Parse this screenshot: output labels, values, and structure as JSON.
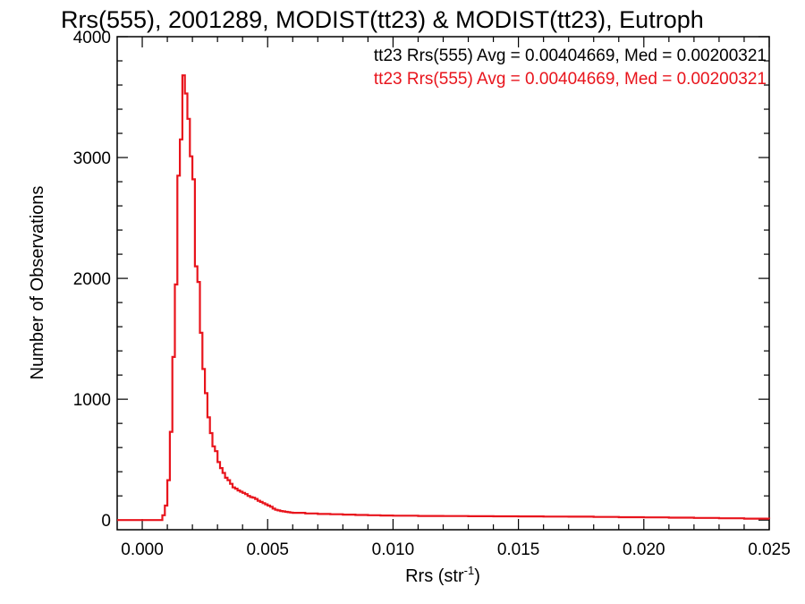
{
  "chart_data": {
    "type": "histogram",
    "title": "Rrs(555), 2001289, MODIST(tt23) & MODIST(tt23), Eutroph",
    "xlabel_main": "Rrs (str",
    "xlabel_sup": "-1",
    "xlabel_end": ")",
    "ylabel": "Number of Observations",
    "xlim": [
      -0.001,
      0.025
    ],
    "ylim": [
      -80,
      4000
    ],
    "x_ticks": [
      {
        "value": 0.0,
        "label": "0.000"
      },
      {
        "value": 0.005,
        "label": "0.005"
      },
      {
        "value": 0.01,
        "label": "0.010"
      },
      {
        "value": 0.015,
        "label": "0.015"
      },
      {
        "value": 0.02,
        "label": "0.020"
      },
      {
        "value": 0.025,
        "label": "0.025"
      }
    ],
    "y_ticks": [
      {
        "value": 0,
        "label": "0"
      },
      {
        "value": 1000,
        "label": "1000"
      },
      {
        "value": 2000,
        "label": "2000"
      },
      {
        "value": 3000,
        "label": "3000"
      },
      {
        "value": 4000,
        "label": "4000"
      }
    ],
    "legend": [
      {
        "text": "tt23 Rrs(555) Avg = 0.00404669, Med = 0.00200321",
        "color": "#000000"
      },
      {
        "text": "tt23 Rrs(555) Avg = 0.00404669, Med = 0.00200321",
        "color": "#e8141c"
      }
    ],
    "legend_position": "top-right",
    "series": [
      {
        "color": "#e8141c",
        "points": [
          [
            -0.001,
            0
          ],
          [
            0.0007,
            0
          ],
          [
            0.0008,
            40
          ],
          [
            0.0009,
            120
          ],
          [
            0.001,
            330
          ],
          [
            0.0011,
            730
          ],
          [
            0.0012,
            1350
          ],
          [
            0.0013,
            1950
          ],
          [
            0.0014,
            2850
          ],
          [
            0.0015,
            3150
          ],
          [
            0.0016,
            3680
          ],
          [
            0.0017,
            3530
          ],
          [
            0.0018,
            3320
          ],
          [
            0.0019,
            3010
          ],
          [
            0.002,
            2820
          ],
          [
            0.0021,
            2100
          ],
          [
            0.0022,
            1970
          ],
          [
            0.0023,
            1550
          ],
          [
            0.0024,
            1250
          ],
          [
            0.0025,
            1050
          ],
          [
            0.0026,
            850
          ],
          [
            0.0027,
            720
          ],
          [
            0.0028,
            610
          ],
          [
            0.0029,
            570
          ],
          [
            0.003,
            480
          ],
          [
            0.0031,
            430
          ],
          [
            0.0032,
            390
          ],
          [
            0.0033,
            350
          ],
          [
            0.0034,
            330
          ],
          [
            0.0035,
            300
          ],
          [
            0.0036,
            270
          ],
          [
            0.0037,
            260
          ],
          [
            0.0038,
            245
          ],
          [
            0.0039,
            235
          ],
          [
            0.004,
            225
          ],
          [
            0.0041,
            215
          ],
          [
            0.0042,
            200
          ],
          [
            0.0043,
            190
          ],
          [
            0.0044,
            185
          ],
          [
            0.0045,
            175
          ],
          [
            0.0046,
            160
          ],
          [
            0.0047,
            150
          ],
          [
            0.0048,
            140
          ],
          [
            0.0049,
            130
          ],
          [
            0.005,
            120
          ],
          [
            0.0051,
            110
          ],
          [
            0.0052,
            95
          ],
          [
            0.0053,
            85
          ],
          [
            0.0054,
            80
          ],
          [
            0.0055,
            75
          ],
          [
            0.0056,
            72
          ],
          [
            0.0057,
            68
          ],
          [
            0.0058,
            65
          ],
          [
            0.0059,
            62
          ],
          [
            0.006,
            60
          ],
          [
            0.0065,
            55
          ],
          [
            0.007,
            50
          ],
          [
            0.0075,
            48
          ],
          [
            0.008,
            45
          ],
          [
            0.0085,
            42
          ],
          [
            0.009,
            40
          ],
          [
            0.0095,
            38
          ],
          [
            0.01,
            36
          ],
          [
            0.011,
            34
          ],
          [
            0.012,
            33
          ],
          [
            0.013,
            32
          ],
          [
            0.014,
            31
          ],
          [
            0.015,
            30
          ],
          [
            0.016,
            29
          ],
          [
            0.017,
            28
          ],
          [
            0.018,
            26
          ],
          [
            0.019,
            24
          ],
          [
            0.02,
            22
          ],
          [
            0.021,
            20
          ],
          [
            0.022,
            18
          ],
          [
            0.023,
            15
          ],
          [
            0.024,
            12
          ],
          [
            0.025,
            10
          ]
        ]
      }
    ]
  }
}
